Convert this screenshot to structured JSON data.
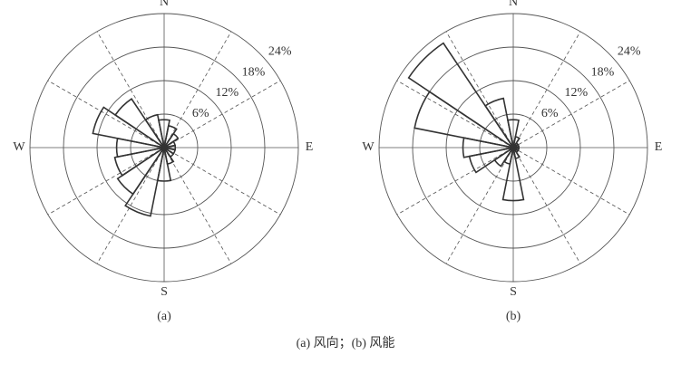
{
  "caption": "(a) 风向；(b) 风能",
  "chart_data": [
    {
      "type": "windrose",
      "title": "(a)",
      "categories": [
        "N",
        null,
        null,
        null,
        "E",
        null,
        null,
        null,
        "S",
        null,
        null,
        null,
        "W",
        null,
        null,
        null
      ],
      "values": [
        5,
        4,
        3,
        2,
        2,
        2,
        2,
        3,
        6,
        12.5,
        10,
        9,
        8.5,
        13,
        10.5,
        6
      ],
      "color": "#333333",
      "rlim": [
        0,
        24
      ],
      "rticks": [
        {
          "value": 6,
          "label": "6%"
        },
        {
          "value": 12,
          "label": "12%"
        },
        {
          "value": 18,
          "label": "18%"
        },
        {
          "value": 24,
          "label": "24%"
        }
      ]
    },
    {
      "type": "windrose",
      "title": "(b)",
      "categories": [
        "N",
        null,
        null,
        null,
        "E",
        null,
        null,
        null,
        "S",
        null,
        null,
        null,
        "W",
        null,
        null,
        null
      ],
      "values": [
        5,
        2,
        1,
        1,
        1,
        1,
        1,
        2,
        9.5,
        3,
        4,
        8,
        9,
        18,
        22.5,
        9
      ],
      "color": "#333333",
      "rlim": [
        0,
        24
      ],
      "rticks": [
        {
          "value": 6,
          "label": "6%"
        },
        {
          "value": 12,
          "label": "12%"
        },
        {
          "value": 18,
          "label": "18%"
        },
        {
          "value": 24,
          "label": "24%"
        }
      ]
    }
  ]
}
